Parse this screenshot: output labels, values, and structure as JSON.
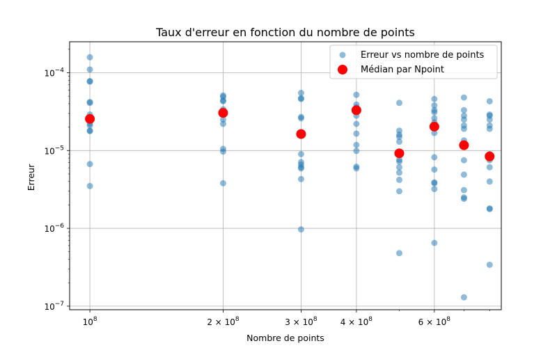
{
  "chart_data": {
    "type": "scatter",
    "title": "Taux d'erreur en fonction du nombre de points",
    "xlabel": "Nombre de points",
    "ylabel": "Erreur",
    "xscale": "log",
    "yscale": "log",
    "xlim": [
      90000000,
      850000000
    ],
    "ylim": [
      9e-08,
      0.00025
    ],
    "grid": true,
    "legend_position": "top-right",
    "x_ticks": [
      {
        "value": 100000000,
        "base": "10",
        "exp": "8"
      },
      {
        "value": 200000000,
        "base": "2 × 10",
        "exp": "8"
      },
      {
        "value": 300000000,
        "base": "3 × 10",
        "exp": "8"
      },
      {
        "value": 400000000,
        "base": "4 × 10",
        "exp": "8"
      },
      {
        "value": 600000000,
        "base": "6 × 10",
        "exp": "8"
      }
    ],
    "y_ticks": [
      {
        "value": 1e-07,
        "base": "10",
        "exp": "−7"
      },
      {
        "value": 1e-06,
        "base": "10",
        "exp": "−6"
      },
      {
        "value": 1e-05,
        "base": "10",
        "exp": "−5"
      },
      {
        "value": 0.0001,
        "base": "10",
        "exp": "−4"
      }
    ],
    "series": [
      {
        "name": "Erreur vs nombre de points",
        "color": "#1f77b4",
        "points": [
          [
            100000000,
            0.000158
          ],
          [
            100000000,
            0.00011
          ],
          [
            100000000,
            7.8e-05
          ],
          [
            100000000,
            7.7e-05
          ],
          [
            100000000,
            4.1e-05
          ],
          [
            100000000,
            4.2e-05
          ],
          [
            100000000,
            2.9e-05
          ],
          [
            100000000,
            2.7e-05
          ],
          [
            100000000,
            2.5e-05
          ],
          [
            100000000,
            2.2e-05
          ],
          [
            100000000,
            2.1e-05
          ],
          [
            100000000,
            1.8e-05
          ],
          [
            100000000,
            1.78e-05
          ],
          [
            100000000,
            6.7e-06
          ],
          [
            100000000,
            3.5e-06
          ],
          [
            200000000,
            5.1e-05
          ],
          [
            200000000,
            4.9e-05
          ],
          [
            200000000,
            4.4e-05
          ],
          [
            200000000,
            4.3e-05
          ],
          [
            200000000,
            3.4e-05
          ],
          [
            200000000,
            3.1e-05
          ],
          [
            200000000,
            2.9e-05
          ],
          [
            200000000,
            2.5e-05
          ],
          [
            200000000,
            2.2e-05
          ],
          [
            200000000,
            1.05e-05
          ],
          [
            200000000,
            9.7e-06
          ],
          [
            200000000,
            3.8e-06
          ],
          [
            300000000,
            5.5e-05
          ],
          [
            300000000,
            4.7e-05
          ],
          [
            300000000,
            4.6e-05
          ],
          [
            300000000,
            2.7e-05
          ],
          [
            300000000,
            2.6e-05
          ],
          [
            300000000,
            1.6e-05
          ],
          [
            300000000,
            9e-06
          ],
          [
            300000000,
            7.1e-06
          ],
          [
            300000000,
            6.6e-06
          ],
          [
            300000000,
            6.1e-06
          ],
          [
            300000000,
            5.9e-06
          ],
          [
            300000000,
            4.3e-06
          ],
          [
            300000000,
            9.7e-07
          ],
          [
            400000000,
            5.2e-05
          ],
          [
            400000000,
            3.9e-05
          ],
          [
            400000000,
            3.6e-05
          ],
          [
            400000000,
            3.3e-05
          ],
          [
            400000000,
            2.8e-05
          ],
          [
            400000000,
            2.2e-05
          ],
          [
            400000000,
            1.65e-05
          ],
          [
            400000000,
            1.18e-05
          ],
          [
            400000000,
            9.9e-06
          ],
          [
            400000000,
            6.2e-06
          ],
          [
            400000000,
            5.9e-06
          ],
          [
            500000000,
            4.1e-05
          ],
          [
            500000000,
            1.8e-05
          ],
          [
            500000000,
            1.6e-05
          ],
          [
            500000000,
            1.5e-05
          ],
          [
            500000000,
            1.3e-05
          ],
          [
            500000000,
            9.5e-06
          ],
          [
            500000000,
            7.6e-06
          ],
          [
            500000000,
            7.2e-06
          ],
          [
            500000000,
            6.1e-06
          ],
          [
            500000000,
            5.2e-06
          ],
          [
            500000000,
            4.2e-06
          ],
          [
            500000000,
            3e-06
          ],
          [
            500000000,
            4.8e-07
          ],
          [
            600000000,
            4.6e-05
          ],
          [
            600000000,
            3.8e-05
          ],
          [
            600000000,
            3.3e-05
          ],
          [
            600000000,
            3.1e-05
          ],
          [
            600000000,
            2.6e-05
          ],
          [
            600000000,
            2.3e-05
          ],
          [
            600000000,
            2.05e-05
          ],
          [
            600000000,
            1.68e-05
          ],
          [
            600000000,
            8.2e-06
          ],
          [
            600000000,
            5.7e-06
          ],
          [
            600000000,
            3.9e-06
          ],
          [
            600000000,
            3.8e-06
          ],
          [
            600000000,
            3.2e-06
          ],
          [
            600000000,
            6.5e-07
          ],
          [
            700000000,
            4.8e-05
          ],
          [
            700000000,
            3.3e-05
          ],
          [
            700000000,
            2.8e-05
          ],
          [
            700000000,
            2.5e-05
          ],
          [
            700000000,
            2.1e-05
          ],
          [
            700000000,
            1.9e-05
          ],
          [
            700000000,
            1.35e-05
          ],
          [
            700000000,
            1.15e-05
          ],
          [
            700000000,
            7.5e-06
          ],
          [
            700000000,
            4.9e-06
          ],
          [
            700000000,
            3.1e-06
          ],
          [
            700000000,
            2.5e-06
          ],
          [
            700000000,
            2.4e-06
          ],
          [
            700000000,
            1.3e-07
          ],
          [
            800000000,
            4.3e-05
          ],
          [
            800000000,
            2.9e-05
          ],
          [
            800000000,
            2.8e-05
          ],
          [
            800000000,
            2.5e-05
          ],
          [
            800000000,
            2.1e-05
          ],
          [
            800000000,
            1.9e-05
          ],
          [
            800000000,
            9e-06
          ],
          [
            800000000,
            7.5e-06
          ],
          [
            800000000,
            6.1e-06
          ],
          [
            800000000,
            4e-06
          ],
          [
            800000000,
            1.8e-06
          ],
          [
            800000000,
            1.77e-06
          ],
          [
            800000000,
            3.4e-07
          ]
        ]
      },
      {
        "name": "Médian par Npoint",
        "color": "#ff0000",
        "points": [
          [
            100000000,
            2.55e-05
          ],
          [
            200000000,
            3.05e-05
          ],
          [
            300000000,
            1.63e-05
          ],
          [
            400000000,
            3.3e-05
          ],
          [
            500000000,
            9.2e-06
          ],
          [
            600000000,
            2.03e-05
          ],
          [
            700000000,
            1.17e-05
          ],
          [
            800000000,
            8.4e-06
          ]
        ]
      }
    ]
  }
}
